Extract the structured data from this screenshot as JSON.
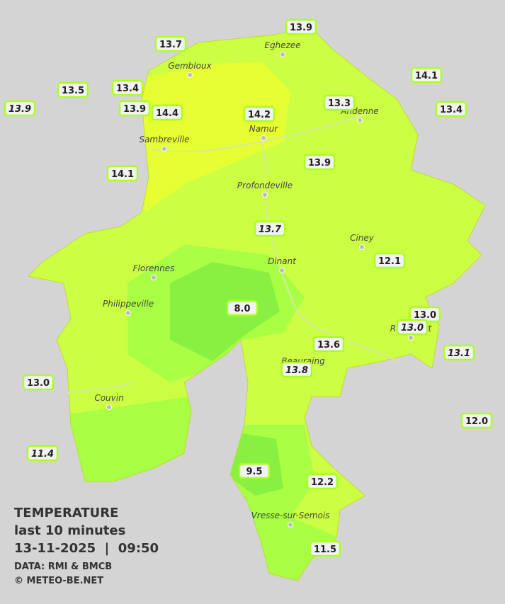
{
  "title": "TEMPERATURE",
  "subtitle": "last 10 minutes",
  "datetime": "13-11-2025  |  09:50",
  "source": "DATA: RMI & BMCB",
  "credit": "© METEO-BE.NET",
  "cities": [
    "Eghezee",
    "Gembloux",
    "Andenne",
    "Namur",
    "Sambreville",
    "Profondeville",
    "Ciney",
    "Florennes",
    "Dinant",
    "Philippeville",
    "Rochefort",
    "Beauraing",
    "Couvin",
    "Vresse-sur-Semois"
  ],
  "stations": [
    "13.9",
    "13.7",
    "14.1",
    "13.5",
    "13.4",
    "13.9",
    "13.9",
    "14.4",
    "14.2",
    "13.3",
    "13.4",
    "13.9",
    "14.1",
    "13.7",
    "12.1",
    "8.0",
    "13.0",
    "13.0",
    "13.6",
    "13.1",
    "13.8",
    "13.0",
    "12.0",
    "11.4",
    "9.5",
    "12.2",
    "11.5"
  ]
}
